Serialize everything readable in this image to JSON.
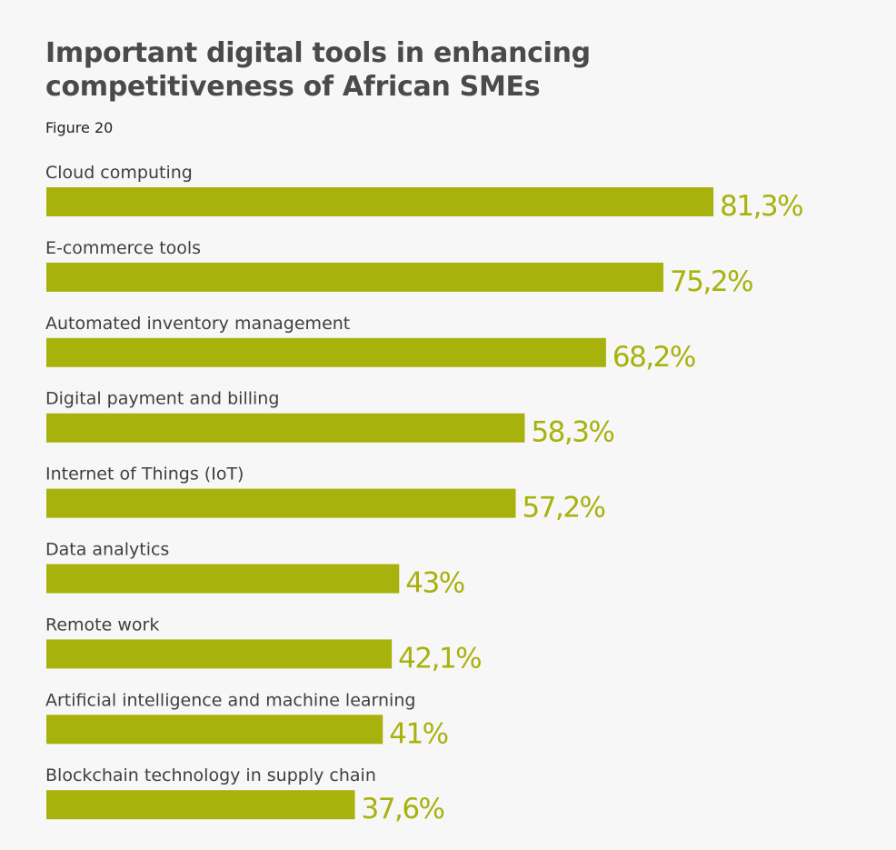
{
  "header": {
    "title": "Important digital tools in enhancing competitiveness of African SMEs",
    "subtitle": "Figure 20"
  },
  "colors": {
    "bar": "#a8b20c",
    "value_text": "#a8b20c"
  },
  "chart_data": {
    "type": "bar",
    "orientation": "horizontal",
    "title": "Important digital tools in enhancing competitiveness of African SMEs",
    "subtitle": "Figure 20",
    "xlim": [
      0,
      100
    ],
    "grid": false,
    "legend": "none",
    "categories": [
      "Cloud computing",
      "E-commerce tools",
      "Automated inventory management",
      "Digital payment and billing",
      "Internet of Things (IoT)",
      "Data analytics",
      "Remote work",
      "Artificial intelligence and machine learning",
      "Blockchain technology in supply chain"
    ],
    "values": [
      81.3,
      75.2,
      68.2,
      58.3,
      57.2,
      43,
      42.1,
      41,
      37.6
    ],
    "value_labels": [
      "81,3%",
      "75,2%",
      "68,2%",
      "58,3%",
      "57,2%",
      "43%",
      "42,1%",
      "41%",
      "37,6%"
    ]
  }
}
